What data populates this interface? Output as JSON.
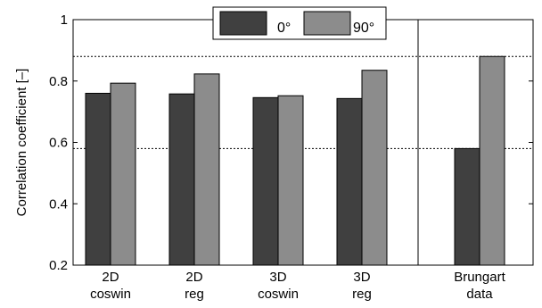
{
  "chart_data": {
    "type": "bar",
    "title": "",
    "xlabel": "",
    "ylabel": "Correlation coefficient [–]",
    "ylim": [
      0.2,
      1.0
    ],
    "yticks": [
      "0.2",
      "0.4",
      "0.6",
      "0.8",
      "1"
    ],
    "ytick_values": [
      0.2,
      0.4,
      0.6,
      0.8,
      1.0
    ],
    "categories": [
      [
        "2D",
        "coswin"
      ],
      [
        "2D",
        "reg"
      ],
      [
        "3D",
        "coswin"
      ],
      [
        "3D",
        "reg"
      ],
      [
        "Brungart",
        "data"
      ]
    ],
    "series": [
      {
        "name": "0°",
        "color": "#404040",
        "values": [
          0.76,
          0.758,
          0.746,
          0.743,
          0.58
        ]
      },
      {
        "name": "90°",
        "color": "#8c8c8c",
        "values": [
          0.793,
          0.823,
          0.752,
          0.835,
          0.88
        ]
      }
    ],
    "reference_lines": [
      0.88,
      0.58
    ],
    "reference_line_style": "dotted",
    "separator_after_category": 3,
    "legend": {
      "placement": "top-center",
      "orientation": "horizontal",
      "labels": [
        "0°",
        "90°"
      ]
    },
    "grid": false
  }
}
